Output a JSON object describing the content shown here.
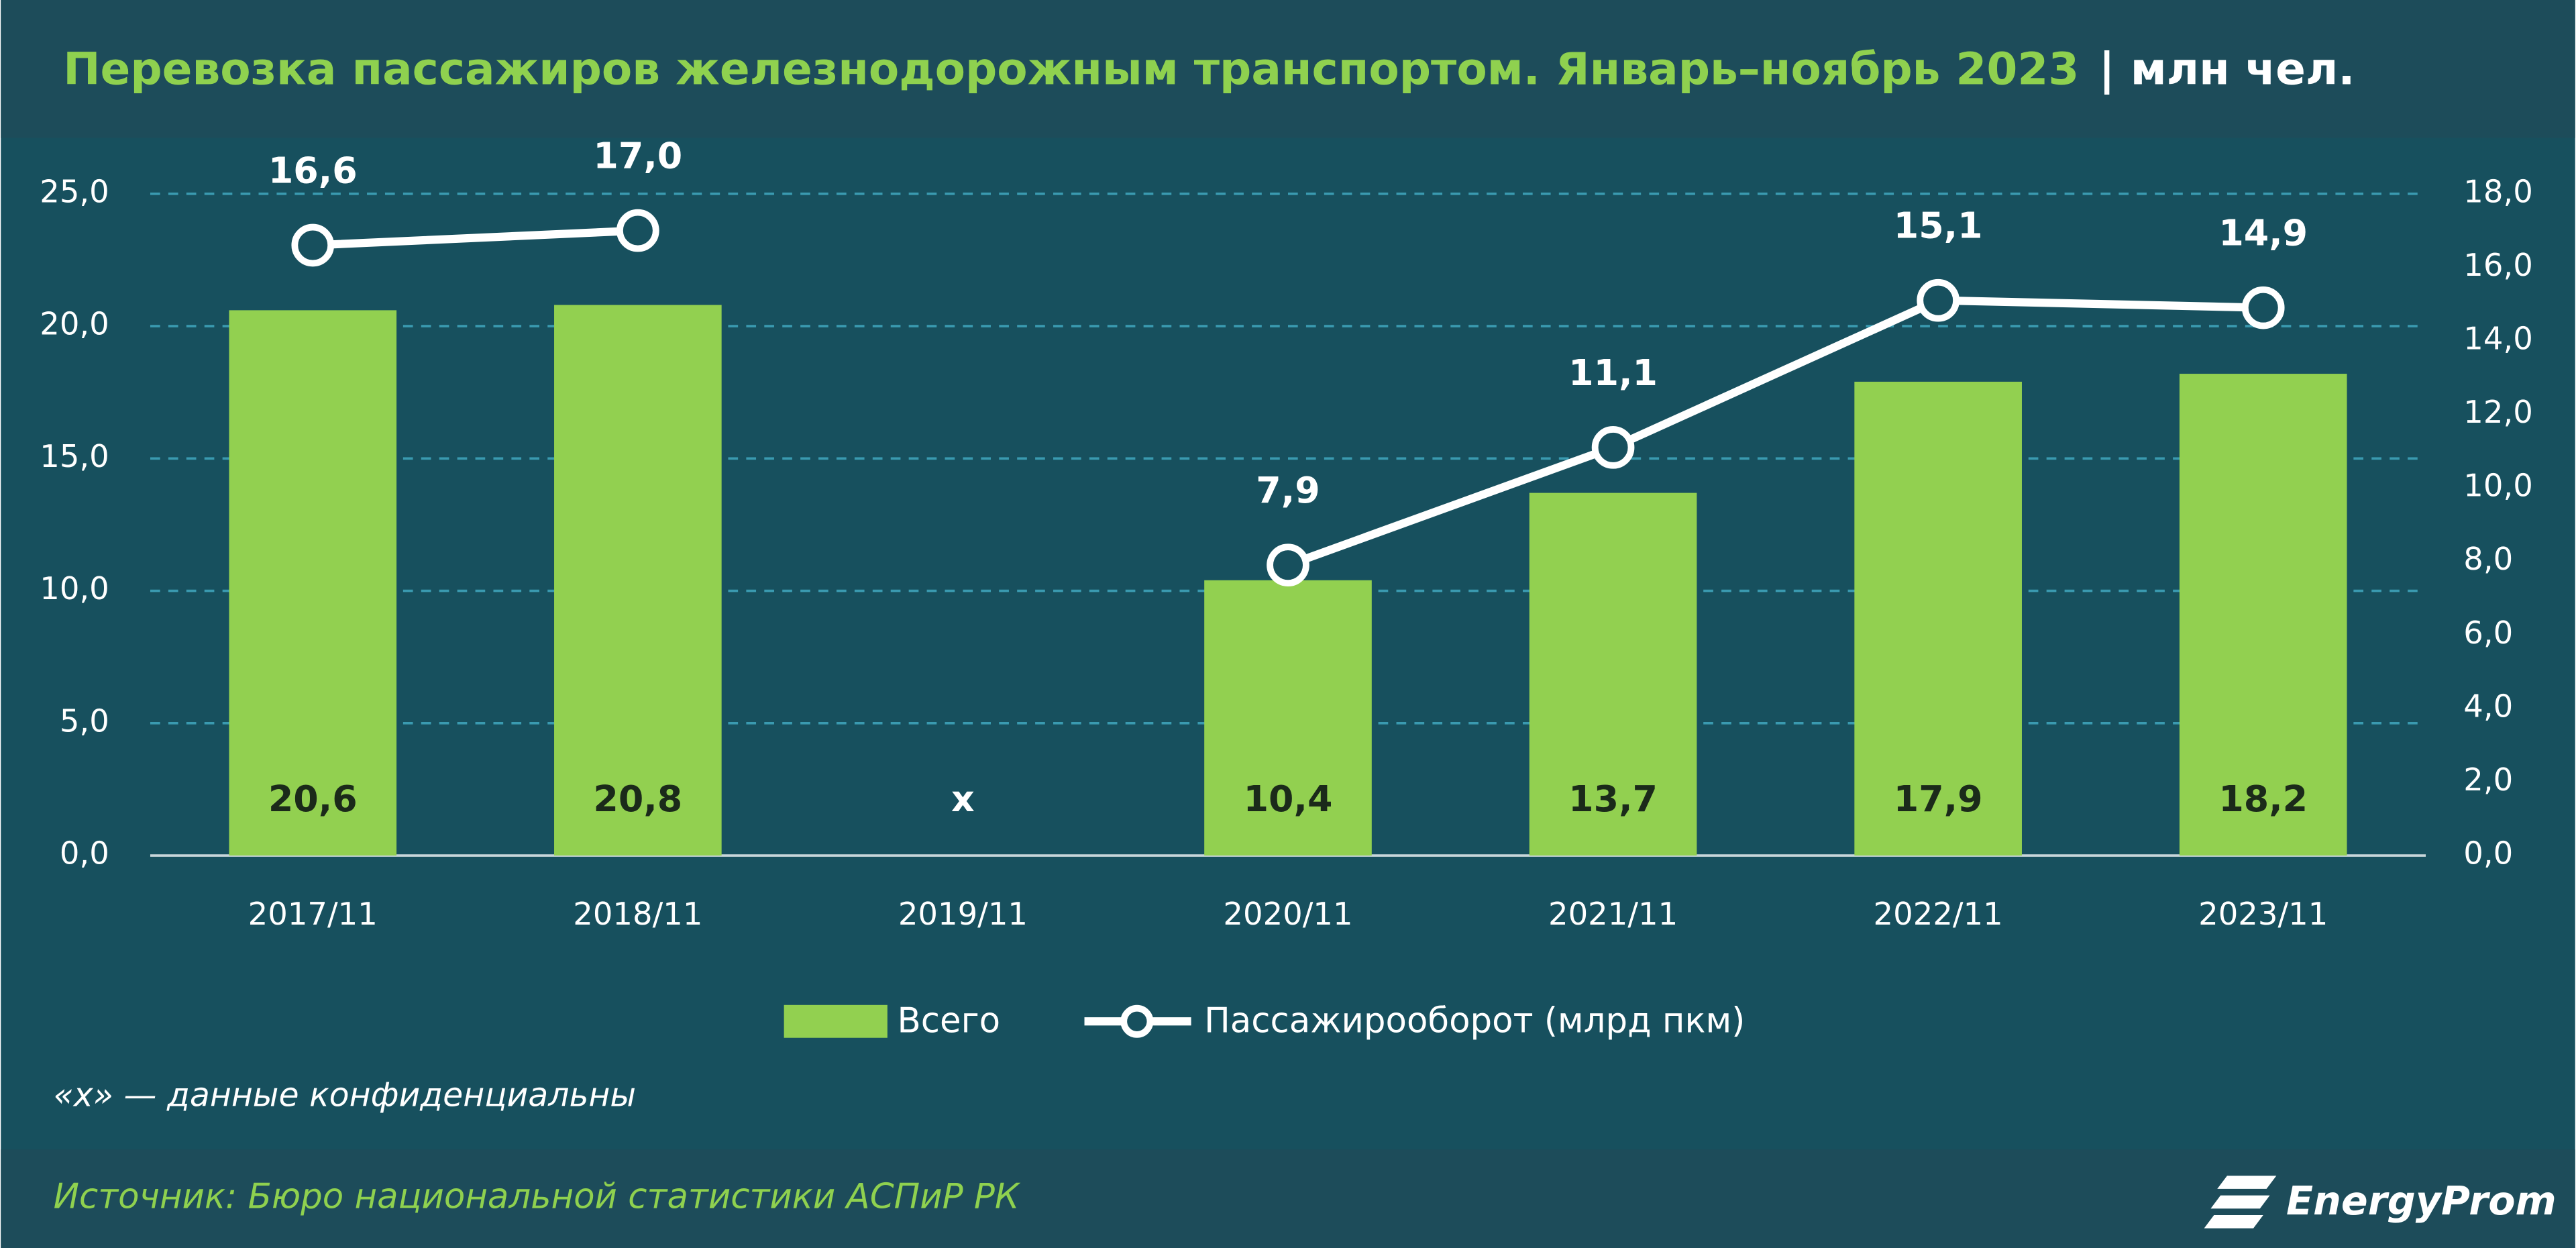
{
  "chart_data": {
    "type": "bar_line",
    "title": "Перевозка пассажиров железнодорожным транспортом. Январь–ноябрь 2023",
    "unit": "| млн чел.",
    "categories": [
      "2017/11",
      "2018/11",
      "2019/11",
      "2020/11",
      "2021/11",
      "2022/11",
      "2023/11"
    ],
    "series": [
      {
        "name": "Всего",
        "type": "bar",
        "color": "#92d050",
        "values": [
          20.6,
          20.8,
          null,
          10.4,
          13.7,
          17.9,
          18.2
        ],
        "value_labels": [
          "20,6",
          "20,8",
          "x",
          "10,4",
          "13,7",
          "17,9",
          "18,2"
        ]
      },
      {
        "name": "Пассажирооборот (млрд пкм)",
        "type": "line",
        "axis": "y2",
        "color": "#ffffff",
        "values": [
          16.6,
          17.0,
          null,
          7.9,
          11.1,
          15.1,
          14.9
        ],
        "value_labels": [
          "16,6",
          "17,0",
          null,
          "7,9",
          "11,1",
          "15,1",
          "14,9"
        ]
      }
    ],
    "ylim": [
      0,
      25
    ],
    "yticks": [
      {
        "value": 0,
        "label": "0,0"
      },
      {
        "value": 5,
        "label": "5,0"
      },
      {
        "value": 10,
        "label": "10,0"
      },
      {
        "value": 15,
        "label": "15,0"
      },
      {
        "value": 20,
        "label": "20,0"
      },
      {
        "value": 25,
        "label": "25,0"
      }
    ],
    "y2lim": [
      0,
      18
    ],
    "y2ticks": [
      {
        "value": 0,
        "label": "0,0"
      },
      {
        "value": 2,
        "label": "2,0"
      },
      {
        "value": 4,
        "label": "4,0"
      },
      {
        "value": 6,
        "label": "6,0"
      },
      {
        "value": 8,
        "label": "8,0"
      },
      {
        "value": 10,
        "label": "10,0"
      },
      {
        "value": 12,
        "label": "12,0"
      },
      {
        "value": 14,
        "label": "14,0"
      },
      {
        "value": 16,
        "label": "16,0"
      },
      {
        "value": 18,
        "label": "18,0"
      }
    ],
    "grid": true,
    "legend": "bottom",
    "note": "«x» — данные конфиденциальны",
    "source": "Источник: Бюро национальной статистики АСПиР РК",
    "logo": "EnergyProm"
  }
}
